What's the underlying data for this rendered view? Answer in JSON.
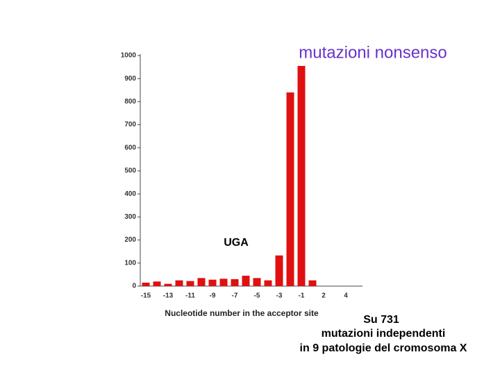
{
  "chart_data": {
    "type": "bar",
    "title": "mutazioni nonsenso",
    "annotation": "UGA",
    "x_label": "Nucleotide number in the acceptor site",
    "notes": [
      "Su 731",
      "mutazioni independenti",
      "in 9 patologie del cromosoma X"
    ],
    "categories": [
      "-15",
      null,
      "-13",
      null,
      "-11",
      null,
      "-9",
      null,
      "-7",
      null,
      "-5",
      null,
      "-3",
      null,
      "-1",
      null,
      "2",
      null,
      "4",
      null
    ],
    "values": [
      15,
      20,
      10,
      25,
      22,
      35,
      28,
      32,
      30,
      45,
      35,
      25,
      133,
      840,
      955,
      25,
      0,
      0,
      0,
      0
    ],
    "color": "#e01010",
    "ylim": [
      0,
      1000
    ],
    "yticks": [
      0,
      100,
      200,
      300,
      400,
      500,
      600,
      700,
      800,
      900,
      1000
    ],
    "grid": false
  }
}
